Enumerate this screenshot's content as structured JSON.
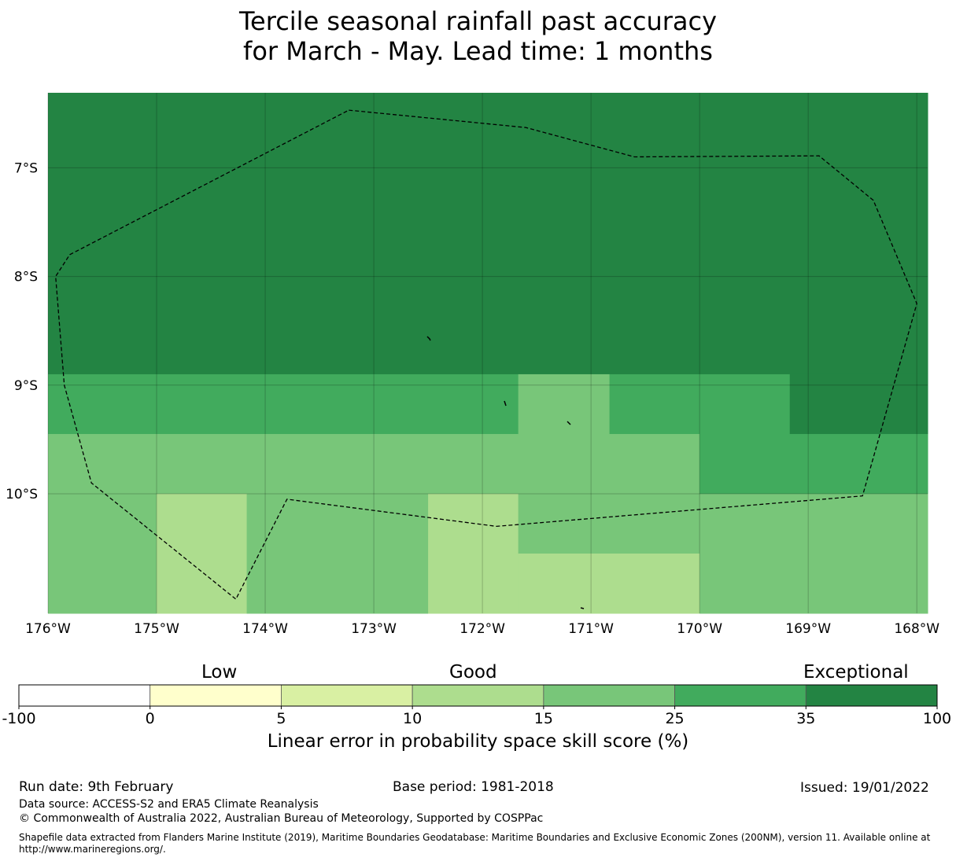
{
  "title": {
    "line1": "Tercile seasonal rainfall past accuracy",
    "line2": "for March - May. Lead time: 1 months"
  },
  "map": {
    "lat_ticks": [
      "7°S",
      "8°S",
      "9°S",
      "10°S"
    ],
    "lon_ticks": [
      "176°W",
      "175°W",
      "174°W",
      "173°W",
      "172°W",
      "171°W",
      "170°W",
      "169°W",
      "168°W"
    ],
    "extent": {
      "lon_min": -176,
      "lon_max": -167.9,
      "lat_max": -6.31,
      "lat_min": -11.1
    },
    "cells": [
      {
        "lon0": -176,
        "lon1": -167.9,
        "lat0": -8.9,
        "lat1": -6.31,
        "class": 6
      },
      {
        "lon0": -176,
        "lon1": -171.67,
        "lat0": -9.45,
        "lat1": -8.9,
        "class": 5
      },
      {
        "lon0": -171.67,
        "lon1": -170.83,
        "lat0": -9.45,
        "lat1": -8.9,
        "class": 4
      },
      {
        "lon0": -170.83,
        "lon1": -169.17,
        "lat0": -9.45,
        "lat1": -8.9,
        "class": 5
      },
      {
        "lon0": -169.17,
        "lon1": -167.9,
        "lat0": -9.45,
        "lat1": -8.9,
        "class": 6
      },
      {
        "lon0": -176,
        "lon1": -170,
        "lat0": -10.0,
        "lat1": -9.45,
        "class": 4
      },
      {
        "lon0": -170,
        "lon1": -167.9,
        "lat0": -10.0,
        "lat1": -9.45,
        "class": 5
      },
      {
        "lon0": -176,
        "lon1": -175,
        "lat0": -11.1,
        "lat1": -10.0,
        "class": 4
      },
      {
        "lon0": -175,
        "lon1": -174.17,
        "lat0": -11.1,
        "lat1": -10.0,
        "class": 3
      },
      {
        "lon0": -174.17,
        "lon1": -172.5,
        "lat0": -11.1,
        "lat1": -10.0,
        "class": 4
      },
      {
        "lon0": -172.5,
        "lon1": -171.67,
        "lat0": -11.1,
        "lat1": -10.0,
        "class": 3
      },
      {
        "lon0": -171.67,
        "lon1": -170,
        "lat0": -10.55,
        "lat1": -10.0,
        "class": 4
      },
      {
        "lon0": -171.67,
        "lon1": -170,
        "lat0": -11.1,
        "lat1": -10.55,
        "class": 3
      },
      {
        "lon0": -170,
        "lon1": -167.9,
        "lat0": -11.1,
        "lat1": -10.0,
        "class": 4
      }
    ],
    "eez_boundary": [
      [
        -173.23,
        -6.47
      ],
      [
        -171.6,
        -6.63
      ],
      [
        -170.6,
        -6.9
      ],
      [
        -168.9,
        -6.89
      ],
      [
        -168.4,
        -7.3
      ],
      [
        -168.0,
        -8.25
      ],
      [
        -168.5,
        -10.02
      ],
      [
        -171.87,
        -10.3
      ],
      [
        -173.8,
        -10.05
      ],
      [
        -174.27,
        -10.97
      ],
      [
        -175.6,
        -9.9
      ],
      [
        -175.85,
        -9.0
      ],
      [
        -175.93,
        -8.0
      ],
      [
        -175.8,
        -7.8
      ],
      [
        -173.23,
        -6.47
      ]
    ]
  },
  "colorbar": {
    "colors": [
      "#ffffff",
      "#ffffcc",
      "#d9f0a3",
      "#addd8e",
      "#78c679",
      "#41ab5d",
      "#238443"
    ],
    "ticks": [
      "-100",
      "0",
      "5",
      "10",
      "15",
      "25",
      "35",
      "100"
    ],
    "categories": [
      "Low",
      "Good",
      "Exceptional"
    ],
    "label": "Linear error in probability space skill score (%)"
  },
  "footer": {
    "run_date": "Run date: 9th February",
    "base_period": "Base period: 1981-2018",
    "issued": "Issued: 19/01/2022",
    "data_source": "Data source: ACCESS-S2 and ERA5 Climate Reanalysis",
    "copyright": "© Commonwealth of Australia 2022, Australian Bureau of Meteorology, Supported by COSPPac",
    "shapefile": "Shapefile data extracted from Flanders Marine Institute (2019), Maritime Boundaries Geodatabase: Maritime Boundaries and Exclusive Economic Zones (200NM), version 11. Available online at http://www.marineregions.org/."
  }
}
